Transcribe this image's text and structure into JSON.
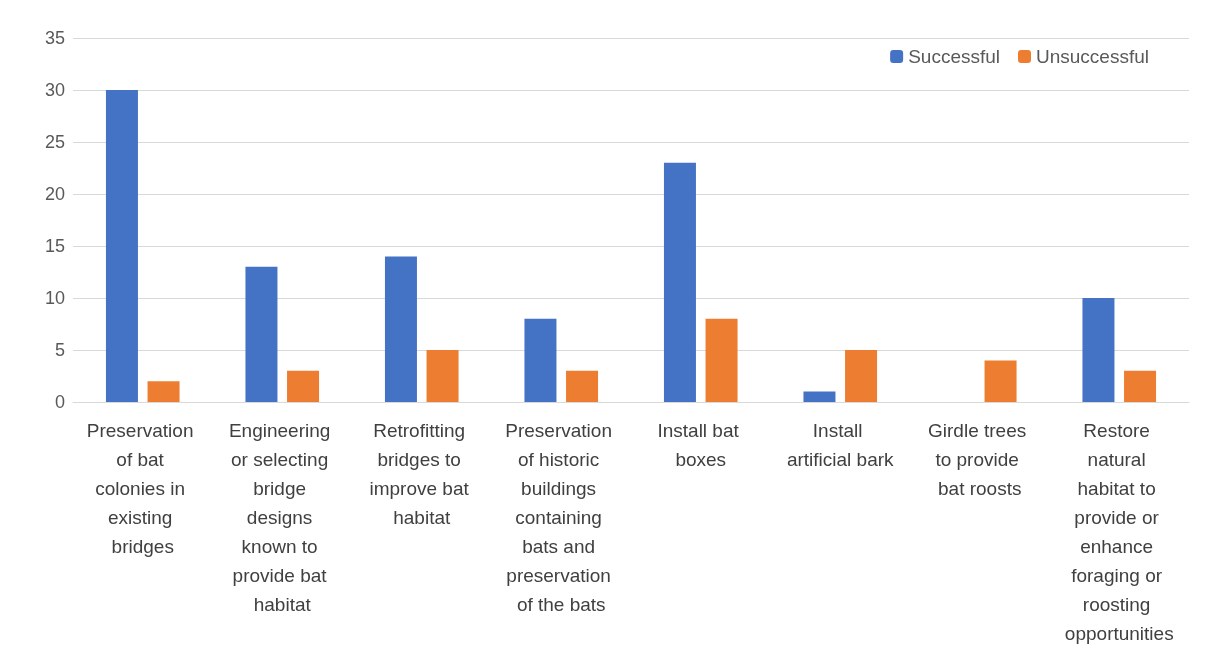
{
  "chart_data": {
    "type": "bar",
    "categories": [
      "Preservation of bat colonies in existing bridges",
      "Engineering or selecting bridge designs known to provide bat habitat",
      "Retrofitting bridges to improve bat habitat",
      "Preservation of historic buildings containing bats and preservation of the bats",
      "Install bat boxes",
      "Install artificial bark",
      "Girdle trees to provide bat roosts",
      "Restore natural habitat to provide or enhance foraging or roosting opportunities"
    ],
    "series": [
      {
        "name": "Successful",
        "color": "#4472c4",
        "values": [
          30,
          13,
          14,
          8,
          23,
          1,
          0,
          10
        ]
      },
      {
        "name": "Unsuccessful",
        "color": "#ed7d31",
        "values": [
          2,
          3,
          5,
          3,
          8,
          5,
          4,
          3
        ]
      }
    ],
    "ylim": [
      0,
      35
    ],
    "yticks": [
      0,
      5,
      10,
      15,
      20,
      25,
      30,
      35
    ],
    "grid": "y",
    "legend": "top right"
  }
}
